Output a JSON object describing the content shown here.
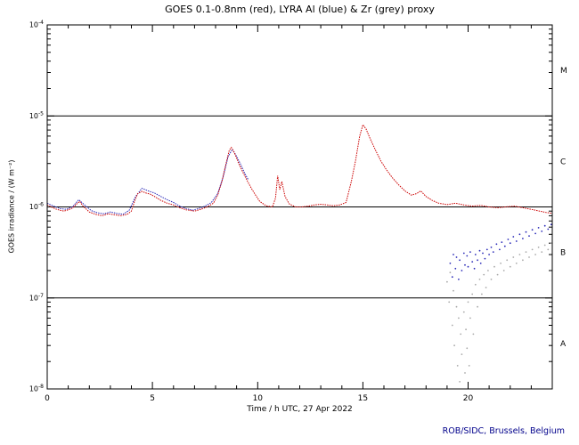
{
  "footer": "ROB/SIDC, Brussels, Belgium",
  "chart_data": {
    "type": "line",
    "title": "GOES 0.1-0.8nm (red), LYRA Al (blue) & Zr (grey) proxy",
    "xlabel": "Time / h UTC, 27 Apr 2022",
    "ylabel": "GOES irradiance / (W m⁻²)",
    "xlim": [
      0,
      24
    ],
    "ylim": [
      1e-08,
      0.0001
    ],
    "y_scale": "log",
    "grid": "off",
    "hlines": [
      1e-05,
      1e-06,
      1e-07
    ],
    "x_major_ticks": [
      0,
      5,
      10,
      15,
      20
    ],
    "x_tick_labels": [
      "0",
      "5",
      "10",
      "15",
      "20"
    ],
    "x_minor_step": 1,
    "y_tick_exponents": [
      -4,
      -5,
      -6,
      -7,
      -8
    ],
    "y_tick_labels": [
      "10⁻⁴",
      "10⁻⁵",
      "10⁻⁶",
      "10⁻⁷",
      "10⁻⁸"
    ],
    "flare_classes": [
      {
        "label": "M",
        "y_value": 3.16e-05
      },
      {
        "label": "C",
        "y_value": 3.16e-06
      },
      {
        "label": "B",
        "y_value": 3.16e-07
      },
      {
        "label": "A",
        "y_value": 3.16e-08
      }
    ],
    "series": [
      {
        "id": "goes-red",
        "name": "GOES 0.1-0.8nm",
        "color": "#cc0000",
        "draw": "line",
        "points": [
          [
            0.0,
            1.05e-06
          ],
          [
            0.2,
            1e-06
          ],
          [
            0.4,
            9.5e-07
          ],
          [
            0.6,
            9.2e-07
          ],
          [
            0.8,
            9e-07
          ],
          [
            1.0,
            9.3e-07
          ],
          [
            1.2,
            9.7e-07
          ],
          [
            1.4,
            1.08e-06
          ],
          [
            1.55,
            1.15e-06
          ],
          [
            1.7,
            1.02e-06
          ],
          [
            2.0,
            8.8e-07
          ],
          [
            2.3,
            8.3e-07
          ],
          [
            2.6,
            8e-07
          ],
          [
            2.9,
            8.4e-07
          ],
          [
            3.2,
            8.2e-07
          ],
          [
            3.5,
            8e-07
          ],
          [
            3.8,
            8.3e-07
          ],
          [
            4.0,
            9e-07
          ],
          [
            4.15,
            1.15e-06
          ],
          [
            4.3,
            1.4e-06
          ],
          [
            4.5,
            1.48e-06
          ],
          [
            4.7,
            1.42e-06
          ],
          [
            4.9,
            1.38e-06
          ],
          [
            5.1,
            1.3e-06
          ],
          [
            5.4,
            1.18e-06
          ],
          [
            5.7,
            1.1e-06
          ],
          [
            6.0,
            1.05e-06
          ],
          [
            6.3,
            9.8e-07
          ],
          [
            6.6,
            9.3e-07
          ],
          [
            7.0,
            9e-07
          ],
          [
            7.3,
            9.4e-07
          ],
          [
            7.6,
            1e-06
          ],
          [
            7.9,
            1.1e-06
          ],
          [
            8.1,
            1.35e-06
          ],
          [
            8.3,
            1.9e-06
          ],
          [
            8.5,
            3e-06
          ],
          [
            8.65,
            4.2e-06
          ],
          [
            8.75,
            4.5e-06
          ],
          [
            8.9,
            3.9e-06
          ],
          [
            9.1,
            3e-06
          ],
          [
            9.3,
            2.4e-06
          ],
          [
            9.5,
            1.95e-06
          ],
          [
            9.7,
            1.6e-06
          ],
          [
            9.9,
            1.35e-06
          ],
          [
            10.1,
            1.15e-06
          ],
          [
            10.4,
            1.03e-06
          ],
          [
            10.7,
            1e-06
          ],
          [
            10.85,
            1.25e-06
          ],
          [
            10.95,
            2.2e-06
          ],
          [
            11.05,
            1.55e-06
          ],
          [
            11.15,
            1.9e-06
          ],
          [
            11.3,
            1.3e-06
          ],
          [
            11.5,
            1.08e-06
          ],
          [
            11.8,
            1e-06
          ],
          [
            12.1,
            1e-06
          ],
          [
            12.4,
            1.02e-06
          ],
          [
            12.7,
            1.05e-06
          ],
          [
            13.0,
            1.07e-06
          ],
          [
            13.3,
            1.05e-06
          ],
          [
            13.6,
            1.03e-06
          ],
          [
            13.9,
            1.05e-06
          ],
          [
            14.2,
            1.12e-06
          ],
          [
            14.45,
            1.9e-06
          ],
          [
            14.65,
            3.2e-06
          ],
          [
            14.85,
            6e-06
          ],
          [
            15.0,
            8e-06
          ],
          [
            15.15,
            7.2e-06
          ],
          [
            15.35,
            5.6e-06
          ],
          [
            15.6,
            4.2e-06
          ],
          [
            15.85,
            3.2e-06
          ],
          [
            16.1,
            2.6e-06
          ],
          [
            16.4,
            2.1e-06
          ],
          [
            16.7,
            1.75e-06
          ],
          [
            17.0,
            1.5e-06
          ],
          [
            17.3,
            1.35e-06
          ],
          [
            17.55,
            1.4e-06
          ],
          [
            17.75,
            1.5e-06
          ],
          [
            18.0,
            1.3e-06
          ],
          [
            18.3,
            1.18e-06
          ],
          [
            18.6,
            1.1e-06
          ],
          [
            19.0,
            1.06e-06
          ],
          [
            19.4,
            1.1e-06
          ],
          [
            19.8,
            1.05e-06
          ],
          [
            20.2,
            1.02e-06
          ],
          [
            20.6,
            1.04e-06
          ],
          [
            21.0,
            1e-06
          ],
          [
            21.4,
            9.8e-07
          ],
          [
            21.8,
            1e-06
          ],
          [
            22.2,
            1.02e-06
          ],
          [
            22.6,
            9.8e-07
          ],
          [
            23.0,
            9.4e-07
          ],
          [
            23.4,
            9e-07
          ],
          [
            23.7,
            8.7e-07
          ],
          [
            24.0,
            8.5e-07
          ]
        ]
      },
      {
        "id": "lyra-al-blue",
        "name": "LYRA Al proxy",
        "color": "#2929b8",
        "draw": "line",
        "points": [
          [
            0.0,
            1.1e-06
          ],
          [
            0.3,
            1.02e-06
          ],
          [
            0.6,
            9.6e-07
          ],
          [
            0.9,
            9.4e-07
          ],
          [
            1.2,
            1e-06
          ],
          [
            1.5,
            1.2e-06
          ],
          [
            1.8,
            1.04e-06
          ],
          [
            2.1,
            9.1e-07
          ],
          [
            2.4,
            8.6e-07
          ],
          [
            2.7,
            8.4e-07
          ],
          [
            3.0,
            8.8e-07
          ],
          [
            3.3,
            8.5e-07
          ],
          [
            3.6,
            8.3e-07
          ],
          [
            3.9,
            9.2e-07
          ],
          [
            4.2,
            1.3e-06
          ],
          [
            4.5,
            1.6e-06
          ],
          [
            4.8,
            1.5e-06
          ],
          [
            5.1,
            1.42e-06
          ],
          [
            5.4,
            1.3e-06
          ],
          [
            5.7,
            1.2e-06
          ],
          [
            6.0,
            1.12e-06
          ],
          [
            6.3,
            1.02e-06
          ],
          [
            6.6,
            9.6e-07
          ],
          [
            6.9,
            9.2e-07
          ],
          [
            7.2,
            9.6e-07
          ],
          [
            7.5,
            1.02e-06
          ],
          [
            7.8,
            1.12e-06
          ],
          [
            8.1,
            1.4e-06
          ],
          [
            8.35,
            2.1e-06
          ],
          [
            8.6,
            3.6e-06
          ],
          [
            8.8,
            4.3e-06
          ],
          [
            9.0,
            3.6e-06
          ],
          [
            9.2,
            2.9e-06
          ],
          [
            9.4,
            2.3e-06
          ],
          [
            9.55,
            2e-06
          ]
        ]
      },
      {
        "id": "lyra-al-blue-late",
        "name": "LYRA Al proxy (late)",
        "color": "#2929b8",
        "draw": "dots",
        "points": [
          [
            19.15,
            2.4e-07
          ],
          [
            19.25,
            1.7e-07
          ],
          [
            19.3,
            3e-07
          ],
          [
            19.4,
            2.1e-07
          ],
          [
            19.45,
            2.8e-07
          ],
          [
            19.55,
            1.6e-07
          ],
          [
            19.6,
            2.6e-07
          ],
          [
            19.7,
            2e-07
          ],
          [
            19.8,
            3.1e-07
          ],
          [
            19.85,
            2.3e-07
          ],
          [
            19.95,
            2.9e-07
          ],
          [
            20.0,
            2.2e-07
          ],
          [
            20.1,
            3.2e-07
          ],
          [
            20.2,
            2.5e-07
          ],
          [
            20.3,
            2.1e-07
          ],
          [
            20.35,
            3e-07
          ],
          [
            20.45,
            2.6e-07
          ],
          [
            20.55,
            3.3e-07
          ],
          [
            20.6,
            2.4e-07
          ],
          [
            20.7,
            3.1e-07
          ],
          [
            20.8,
            2.7e-07
          ],
          [
            20.9,
            3.4e-07
          ],
          [
            21.0,
            3e-07
          ],
          [
            21.1,
            3.6e-07
          ],
          [
            21.2,
            3.2e-07
          ],
          [
            21.35,
            3.9e-07
          ],
          [
            21.5,
            3.4e-07
          ],
          [
            21.6,
            4.1e-07
          ],
          [
            21.75,
            3.7e-07
          ],
          [
            21.9,
            4.4e-07
          ],
          [
            22.0,
            4e-07
          ],
          [
            22.15,
            4.7e-07
          ],
          [
            22.3,
            4.2e-07
          ],
          [
            22.45,
            5e-07
          ],
          [
            22.6,
            4.5e-07
          ],
          [
            22.75,
            5.3e-07
          ],
          [
            22.9,
            4.8e-07
          ],
          [
            23.05,
            5.6e-07
          ],
          [
            23.2,
            5.1e-07
          ],
          [
            23.35,
            5.9e-07
          ],
          [
            23.5,
            5.4e-07
          ],
          [
            23.65,
            6.2e-07
          ],
          [
            23.8,
            5.7e-07
          ],
          [
            23.95,
            6.4e-07
          ]
        ]
      },
      {
        "id": "lyra-zr-grey",
        "name": "LYRA Zr proxy",
        "color": "#a9a9a9",
        "draw": "dots",
        "points": [
          [
            19.0,
            1.5e-07
          ],
          [
            19.1,
            9e-08
          ],
          [
            19.15,
            1.9e-07
          ],
          [
            19.25,
            5e-08
          ],
          [
            19.3,
            1.2e-07
          ],
          [
            19.35,
            3e-08
          ],
          [
            19.45,
            8e-08
          ],
          [
            19.5,
            1.8e-08
          ],
          [
            19.55,
            6e-08
          ],
          [
            19.6,
            1.2e-08
          ],
          [
            19.65,
            4e-08
          ],
          [
            19.7,
            2.4e-08
          ],
          [
            19.8,
            7e-08
          ],
          [
            19.85,
            1.5e-08
          ],
          [
            19.9,
            4.5e-08
          ],
          [
            19.95,
            2.8e-08
          ],
          [
            20.0,
            9e-08
          ],
          [
            20.05,
            1.8e-08
          ],
          [
            20.1,
            6e-08
          ],
          [
            20.2,
            1.1e-07
          ],
          [
            20.25,
            4e-08
          ],
          [
            20.35,
            1.4e-07
          ],
          [
            20.45,
            8e-08
          ],
          [
            20.55,
            1.6e-07
          ],
          [
            20.65,
            1.1e-07
          ],
          [
            20.75,
            1.8e-07
          ],
          [
            20.85,
            1.3e-07
          ],
          [
            20.95,
            2e-07
          ],
          [
            21.1,
            1.6e-07
          ],
          [
            21.25,
            2.2e-07
          ],
          [
            21.4,
            1.8e-07
          ],
          [
            21.55,
            2.4e-07
          ],
          [
            21.7,
            2e-07
          ],
          [
            21.85,
            2.6e-07
          ],
          [
            22.0,
            2.2e-07
          ],
          [
            22.15,
            2.8e-07
          ],
          [
            22.3,
            2.4e-07
          ],
          [
            22.45,
            3e-07
          ],
          [
            22.6,
            2.6e-07
          ],
          [
            22.75,
            3.2e-07
          ],
          [
            22.9,
            2.8e-07
          ],
          [
            23.05,
            3.4e-07
          ],
          [
            23.2,
            3e-07
          ],
          [
            23.35,
            3.6e-07
          ],
          [
            23.5,
            3.2e-07
          ],
          [
            23.65,
            3.8e-07
          ],
          [
            23.8,
            3.4e-07
          ],
          [
            23.95,
            4e-07
          ]
        ]
      }
    ]
  }
}
